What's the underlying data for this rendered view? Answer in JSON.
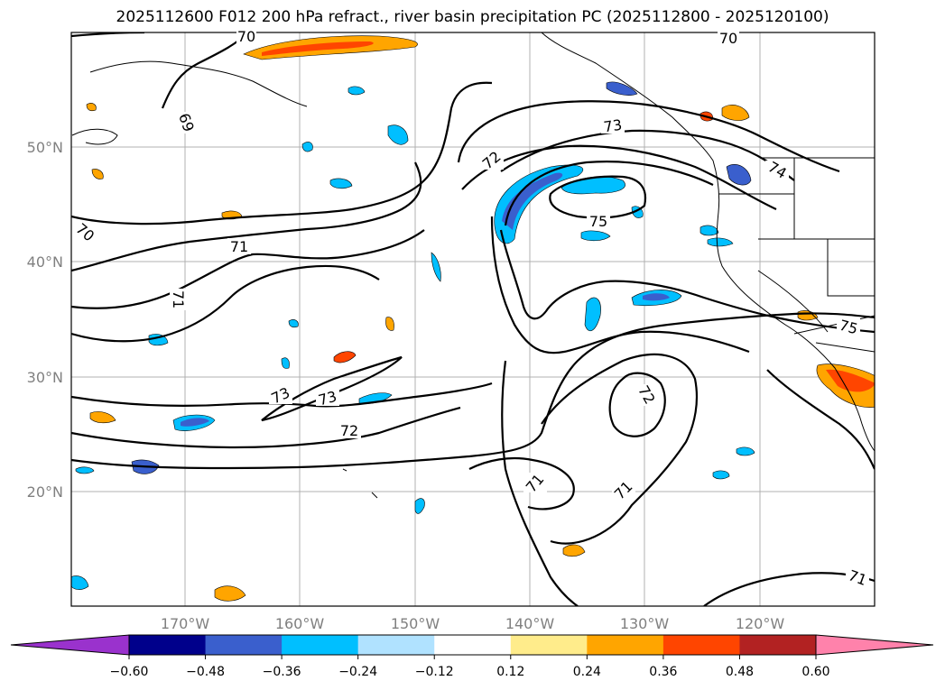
{
  "title": "2025112600 F012 200 hPa refract., river basin precipitation PC (2025112800 - 2025120100)",
  "map": {
    "lon_labels": [
      "170°W",
      "160°W",
      "150°W",
      "140°W",
      "130°W",
      "120°W"
    ],
    "lat_labels": [
      "50°N",
      "40°N",
      "30°N",
      "20°N"
    ],
    "contour_labels": [
      "69",
      "70",
      "70",
      "70",
      "71",
      "71",
      "71",
      "71",
      "71",
      "72",
      "72",
      "72",
      "73",
      "73",
      "73",
      "74",
      "75",
      "75"
    ]
  },
  "colorbar": {
    "ticks": [
      "−0.60",
      "−0.48",
      "−0.36",
      "−0.24",
      "−0.12",
      "0.12",
      "0.24",
      "0.36",
      "0.48",
      "0.60"
    ],
    "colors": [
      "#9a32cd",
      "#00008b",
      "#3a5fcd",
      "#00bfff",
      "#b0e2ff",
      "#ffffff",
      "#ffec8b",
      "#ffa500",
      "#ff4500",
      "#b22222",
      "#ff82ab"
    ]
  }
}
